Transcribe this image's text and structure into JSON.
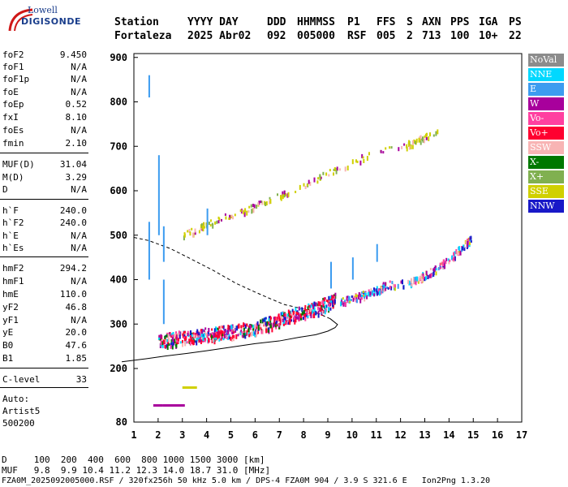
{
  "logo": {
    "top": "Lowell",
    "main": "DIGISONDE"
  },
  "header": {
    "labels": [
      "Station",
      "YYYY DAY",
      "DDD",
      "HHMMSS",
      "P1",
      "FFS",
      "S",
      "AXN",
      "PPS",
      "IGA",
      "PS"
    ],
    "values": [
      "Fortaleza",
      "2025 Abr02",
      "092",
      "005000",
      "RSF",
      "005",
      "2",
      "713",
      "100",
      "10+",
      "22"
    ]
  },
  "params": [
    {
      "k": "foF2",
      "v": "9.450"
    },
    {
      "k": "foF1",
      "v": "N/A"
    },
    {
      "k": "foF1p",
      "v": "N/A"
    },
    {
      "k": "foE",
      "v": "N/A"
    },
    {
      "k": "foEp",
      "v": "0.52"
    },
    {
      "k": "fxI",
      "v": "8.10"
    },
    {
      "k": "foEs",
      "v": "N/A"
    },
    {
      "k": "fmin",
      "v": "2.10"
    },
    {
      "k": "MUF(D)",
      "v": "31.04"
    },
    {
      "k": "M(D)",
      "v": "3.29"
    },
    {
      "k": "D",
      "v": "N/A"
    },
    {
      "k": "h`F",
      "v": "240.0"
    },
    {
      "k": "h`F2",
      "v": "240.0"
    },
    {
      "k": "h`E",
      "v": "N/A"
    },
    {
      "k": "h`Es",
      "v": "N/A"
    },
    {
      "k": "hmF2",
      "v": "294.2"
    },
    {
      "k": "hmF1",
      "v": "N/A"
    },
    {
      "k": "hmE",
      "v": "110.0"
    },
    {
      "k": "yF2",
      "v": "46.8"
    },
    {
      "k": "yF1",
      "v": "N/A"
    },
    {
      "k": "yE",
      "v": "20.0"
    },
    {
      "k": "B0",
      "v": "47.6"
    },
    {
      "k": "B1",
      "v": "1.85"
    },
    {
      "k": "C-level",
      "v": "33"
    }
  ],
  "auto": [
    "Auto:",
    "Artist5",
    "500200"
  ],
  "legend": [
    {
      "label": "NoVal",
      "color": "#8c8c8c"
    },
    {
      "label": "NNE",
      "color": "#00d8ff"
    },
    {
      "label": "E",
      "color": "#3c9cf0"
    },
    {
      "label": "W",
      "color": "#a8009c"
    },
    {
      "label": "Vo-",
      "color": "#ff40a0"
    },
    {
      "label": "Vo+",
      "color": "#ff0030"
    },
    {
      "label": "SSW",
      "color": "#f8b4b4"
    },
    {
      "label": "X-",
      "color": "#007800"
    },
    {
      "label": "X+",
      "color": "#80b050"
    },
    {
      "label": "SSE",
      "color": "#d0d000"
    },
    {
      "label": "NNW",
      "color": "#1818c8"
    }
  ],
  "footer": {
    "d_row": "D     100  200  400  600  800 1000 1500 3000 [km]",
    "muf_row": "MUF   9.8  9.9 10.4 11.2 12.3 14.0 18.7 31.0 [MHz]",
    "info": "FZA0M_2025092005000.RSF / 320fx256h 50 kHz 5.0 km / DPS-4 FZA0M 904 / 3.9 S 321.6 E   Ion2Png 1.3.20"
  },
  "chart_data": {
    "type": "scatter",
    "x_ticks": [
      1,
      2,
      3,
      4,
      5,
      6,
      7,
      8,
      9,
      10,
      11,
      12,
      13,
      14,
      15,
      16,
      17
    ],
    "y_ticks": [
      80,
      200,
      300,
      400,
      500,
      600,
      700,
      800,
      900
    ],
    "xlim": [
      1,
      17
    ],
    "ylim": [
      80,
      900
    ],
    "profile_curve": {
      "x": [
        0.5,
        1.5,
        2.3,
        3.2,
        4.0,
        5.0,
        6.0,
        7.0,
        7.8,
        8.5,
        9.0,
        9.3,
        9.4,
        9.1,
        8.6,
        8.0,
        7.2,
        6.5,
        6.0,
        5.2,
        4.3,
        3.3,
        2.5,
        1.6,
        1.0
      ],
      "y": [
        215,
        222,
        228,
        234,
        240,
        248,
        256,
        262,
        270,
        276,
        284,
        292,
        299,
        312,
        324,
        334,
        344,
        360,
        372,
        392,
        420,
        448,
        470,
        488,
        495
      ]
    },
    "f2_trace": [
      [
        2.0,
        255
      ],
      [
        2.5,
        262
      ],
      [
        3.0,
        266
      ],
      [
        3.5,
        270
      ],
      [
        4.0,
        272
      ],
      [
        4.5,
        276
      ],
      [
        5.0,
        279
      ],
      [
        5.5,
        284
      ],
      [
        6.0,
        289
      ],
      [
        6.5,
        297
      ],
      [
        7.0,
        306
      ],
      [
        7.5,
        315
      ],
      [
        8.0,
        324
      ],
      [
        8.5,
        332
      ],
      [
        9.0,
        343
      ],
      [
        9.3,
        350
      ]
    ],
    "multihop_trace": [
      [
        9.5,
        350
      ],
      [
        10.0,
        358
      ],
      [
        10.5,
        365
      ],
      [
        11.0,
        375
      ],
      [
        11.3,
        385
      ],
      [
        12.5,
        395
      ],
      [
        13.0,
        410
      ],
      [
        13.5,
        425
      ],
      [
        14.0,
        445
      ],
      [
        14.5,
        470
      ],
      [
        14.9,
        490
      ]
    ],
    "second_echo": [
      [
        3.0,
        500
      ],
      [
        3.5,
        510
      ],
      [
        4.0,
        525
      ],
      [
        5.0,
        545
      ],
      [
        6.0,
        565
      ],
      [
        7.0,
        590
      ],
      [
        8.0,
        612
      ],
      [
        9.0,
        640
      ],
      [
        10.0,
        665
      ],
      [
        11.0,
        685
      ],
      [
        12.0,
        698
      ],
      [
        12.5,
        708
      ],
      [
        13.0,
        720
      ],
      [
        13.5,
        735
      ]
    ],
    "spikes": [
      [
        1.6,
        810,
        860
      ],
      [
        1.6,
        400,
        530
      ],
      [
        2.0,
        500,
        680
      ],
      [
        2.2,
        440,
        520
      ],
      [
        2.2,
        300,
        400
      ],
      [
        4.0,
        500,
        560
      ],
      [
        9.1,
        380,
        440
      ],
      [
        10.0,
        400,
        450
      ],
      [
        11.0,
        440,
        480
      ]
    ]
  }
}
